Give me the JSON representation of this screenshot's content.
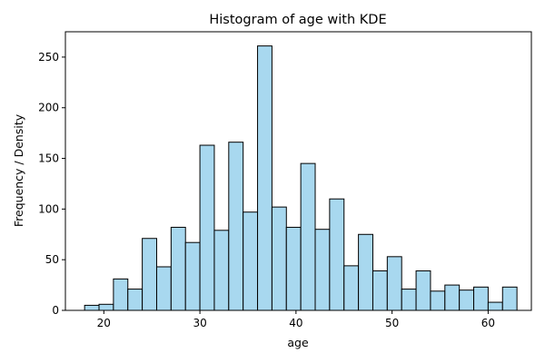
{
  "chart_data": {
    "type": "bar",
    "title": "Histogram of age with KDE",
    "xlabel": "age",
    "ylabel": "Frequency / Density",
    "xlim": [
      16,
      64.5
    ],
    "ylim": [
      0,
      275
    ],
    "xticks": [
      20,
      30,
      40,
      50,
      60
    ],
    "yticks": [
      0,
      50,
      100,
      150,
      200,
      250
    ],
    "bin_edges": [
      18,
      19.5,
      21,
      22.5,
      24,
      25.5,
      27,
      28.5,
      30,
      31.5,
      33,
      34.5,
      36,
      37.5,
      39,
      40.5,
      42,
      43.5,
      45,
      46.5,
      48,
      49.5,
      51,
      52.5,
      54,
      55.5,
      57,
      58.5,
      60,
      61.5,
      63
    ],
    "values": [
      5,
      6,
      31,
      21,
      71,
      43,
      82,
      67,
      163,
      79,
      166,
      97,
      261,
      102,
      82,
      145,
      80,
      110,
      44,
      75,
      39,
      53,
      21,
      39,
      19,
      25,
      20,
      23,
      8,
      23
    ],
    "grid": false,
    "bar_color": "#a8d8ef",
    "edge_color": "#000000"
  }
}
